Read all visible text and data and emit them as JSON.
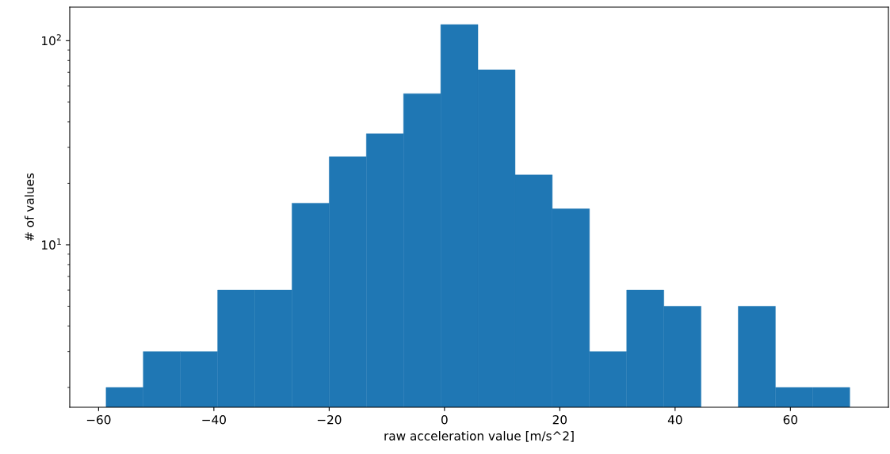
{
  "chart_data": {
    "type": "histogram",
    "xlabel": "raw acceleration value [m/s^2]",
    "ylabel": "# of values",
    "color": "#1f77b4",
    "bins": [
      -58.7,
      -52.25,
      -45.8,
      -39.35,
      -32.9,
      -26.45,
      -20.0,
      -13.55,
      -7.1,
      -0.65,
      5.8,
      12.25,
      18.7,
      25.15,
      31.6,
      38.05,
      44.5,
      50.95,
      57.4,
      63.85,
      70.3
    ],
    "values": [
      2,
      3,
      3,
      6,
      6,
      16,
      27,
      35,
      55,
      120,
      72,
      22,
      15,
      3,
      6,
      5,
      null,
      5,
      2,
      2
    ],
    "log": "y",
    "xlim": [
      -65,
      77
    ],
    "ylim": [
      1.6,
      146
    ],
    "xticks": [
      {
        "value": -60,
        "label": "−60"
      },
      {
        "value": -40,
        "label": "−40"
      },
      {
        "value": -20,
        "label": "−20"
      },
      0,
      20,
      40,
      60
    ],
    "yticks": [
      {
        "value": 10,
        "label": "10$^{1}$"
      },
      {
        "value": 100,
        "label": "10$^{2}$"
      }
    ],
    "grid": false
  }
}
